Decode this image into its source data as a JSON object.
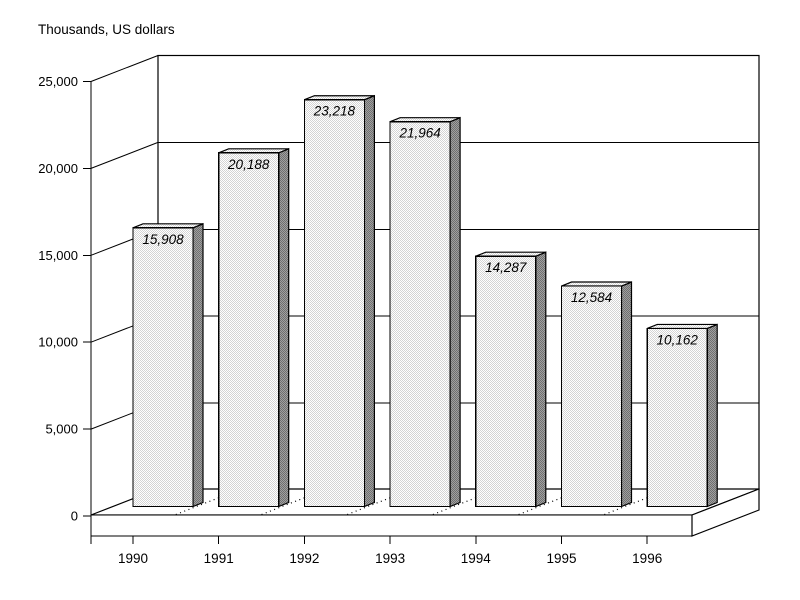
{
  "chart_data": {
    "type": "bar",
    "style": "3d-column",
    "title": "Thousands, US dollars",
    "categories": [
      "1990",
      "1991",
      "1992",
      "1993",
      "1994",
      "1995",
      "1996"
    ],
    "values": [
      15908,
      20188,
      23218,
      21964,
      14287,
      12584,
      10162
    ],
    "data_labels": [
      "15,908",
      "20,188",
      "23,218",
      "21,964",
      "14,287",
      "12,584",
      "10,162"
    ],
    "xlabel": "",
    "ylabel": "Thousands, US dollars",
    "ylim": [
      0,
      25000
    ],
    "y_ticks": [
      0,
      5000,
      10000,
      15000,
      20000,
      25000
    ],
    "y_tick_labels": [
      "0",
      "5,000",
      "10,000",
      "15,000",
      "20,000",
      "25,000"
    ],
    "grid": true,
    "legend": false,
    "colors": {
      "background": "#ffffff",
      "wall_fill": "#ffffff",
      "line": "#000000",
      "bar_front_light": "#ffffff",
      "bar_front_dark": "#d4d4d4",
      "bar_side_light": "#a0a0a0",
      "bar_side_dark": "#6f6f6f",
      "label_color": "#000000"
    }
  }
}
